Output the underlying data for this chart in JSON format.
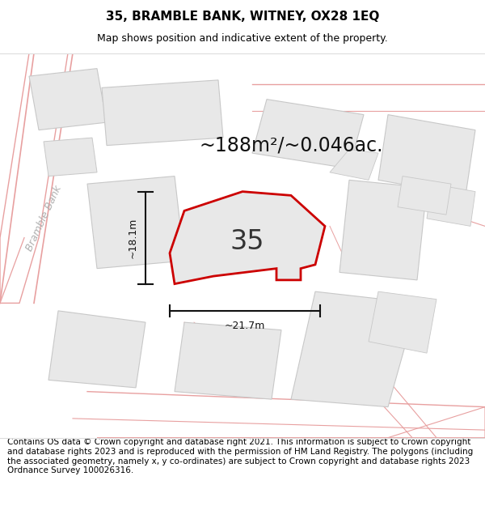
{
  "title": "35, BRAMBLE BANK, WITNEY, OX28 1EQ",
  "subtitle": "Map shows position and indicative extent of the property.",
  "footer": "Contains OS data © Crown copyright and database right 2021. This information is subject to Crown copyright and database rights 2023 and is reproduced with the permission of HM Land Registry. The polygons (including the associated geometry, namely x, y co-ordinates) are subject to Crown copyright and database rights 2023 Ordnance Survey 100026316.",
  "area_label": "~188m²/~0.046ac.",
  "dim_h_label": "~18.1m",
  "dim_w_label": "~21.7m",
  "number_label": "35",
  "map_bg": "#f7f7f7",
  "building_fill": "#e8e8e8",
  "building_edge": "#c8c8c8",
  "road_line_color": "#e8a0a0",
  "property_color": "#cc0000",
  "property_fill": "#e8e8e8",
  "dim_color": "#111111",
  "street_label_color": "#b0b0b0",
  "title_fontsize": 11,
  "subtitle_fontsize": 9,
  "footer_fontsize": 7.5,
  "area_fontsize": 17,
  "number_fontsize": 24,
  "dim_fontsize": 9,
  "street_fontsize": 9
}
